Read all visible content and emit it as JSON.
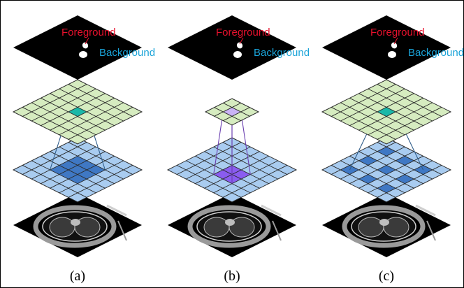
{
  "panels": [
    {
      "caption": "(a)",
      "label_foreground": "Foreground",
      "label_background": "Background",
      "top_grid": {
        "n": 7,
        "highlight": [
          [
            3,
            3
          ]
        ]
      },
      "mid_grid": {
        "n": 7,
        "highlight_block": [
          2,
          2,
          3,
          3
        ]
      },
      "connector_color": "#2f5d8a",
      "mid_highlight_color": "#3f78c4"
    },
    {
      "caption": "(b)",
      "label_foreground": "Foreground",
      "label_background": "Background",
      "top_grid": {
        "n": 3,
        "highlight": [
          [
            1,
            1
          ]
        ]
      },
      "mid_grid": {
        "n": 7,
        "highlight_block": [
          3,
          3,
          2,
          2
        ]
      },
      "connector_color": "#6a3fb0",
      "mid_highlight_color": "#8a5cf0"
    },
    {
      "caption": "(c)",
      "label_foreground": "Foreground",
      "label_background": "Background",
      "top_grid": {
        "n": 7,
        "highlight": [
          [
            3,
            3
          ]
        ]
      },
      "mid_grid": {
        "n": 7,
        "highlight_cells": [
          [
            1,
            1
          ],
          [
            1,
            3
          ],
          [
            1,
            5
          ],
          [
            3,
            1
          ],
          [
            3,
            3
          ],
          [
            3,
            5
          ],
          [
            5,
            1
          ],
          [
            5,
            3
          ],
          [
            5,
            5
          ]
        ]
      },
      "connector_color": "#2f5d8a",
      "mid_highlight_color": "#3f78c4"
    }
  ],
  "colors": {
    "foreground_label": "#e8112d",
    "background_label": "#1aa3d8",
    "top_grid_fill": "#d6ecc0",
    "top_grid_highlight": "#1bb8a8",
    "top_grid_highlight_b": "#c9b3f5",
    "mid_grid_fill": "#a9ccf0",
    "mask_fill": "#000000",
    "ct_fill": "#000000"
  }
}
